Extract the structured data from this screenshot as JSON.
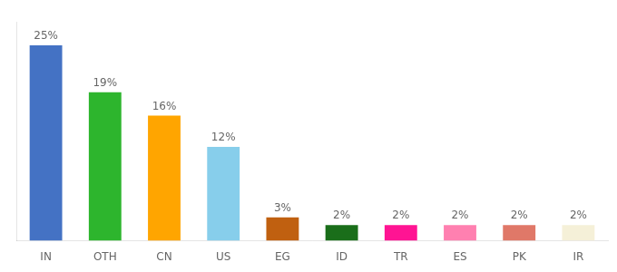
{
  "chart_data": {
    "type": "bar",
    "categories": [
      "IN",
      "OTH",
      "CN",
      "US",
      "EG",
      "ID",
      "TR",
      "ES",
      "PK",
      "IR"
    ],
    "values": [
      25,
      19,
      16,
      12,
      3,
      2,
      2,
      2,
      2,
      2
    ],
    "value_labels": [
      "25%",
      "19%",
      "16%",
      "12%",
      "3%",
      "2%",
      "2%",
      "2%",
      "2%",
      "2%"
    ],
    "colors": [
      "#4472c4",
      "#2db52d",
      "#ffa500",
      "#87ceeb",
      "#c06010",
      "#1a6e1a",
      "#ff1493",
      "#ff80b0",
      "#e07868",
      "#f5f0d8"
    ],
    "ylim": [
      0,
      28
    ],
    "grid": false,
    "data_labels": true,
    "tick_labels": "x"
  }
}
